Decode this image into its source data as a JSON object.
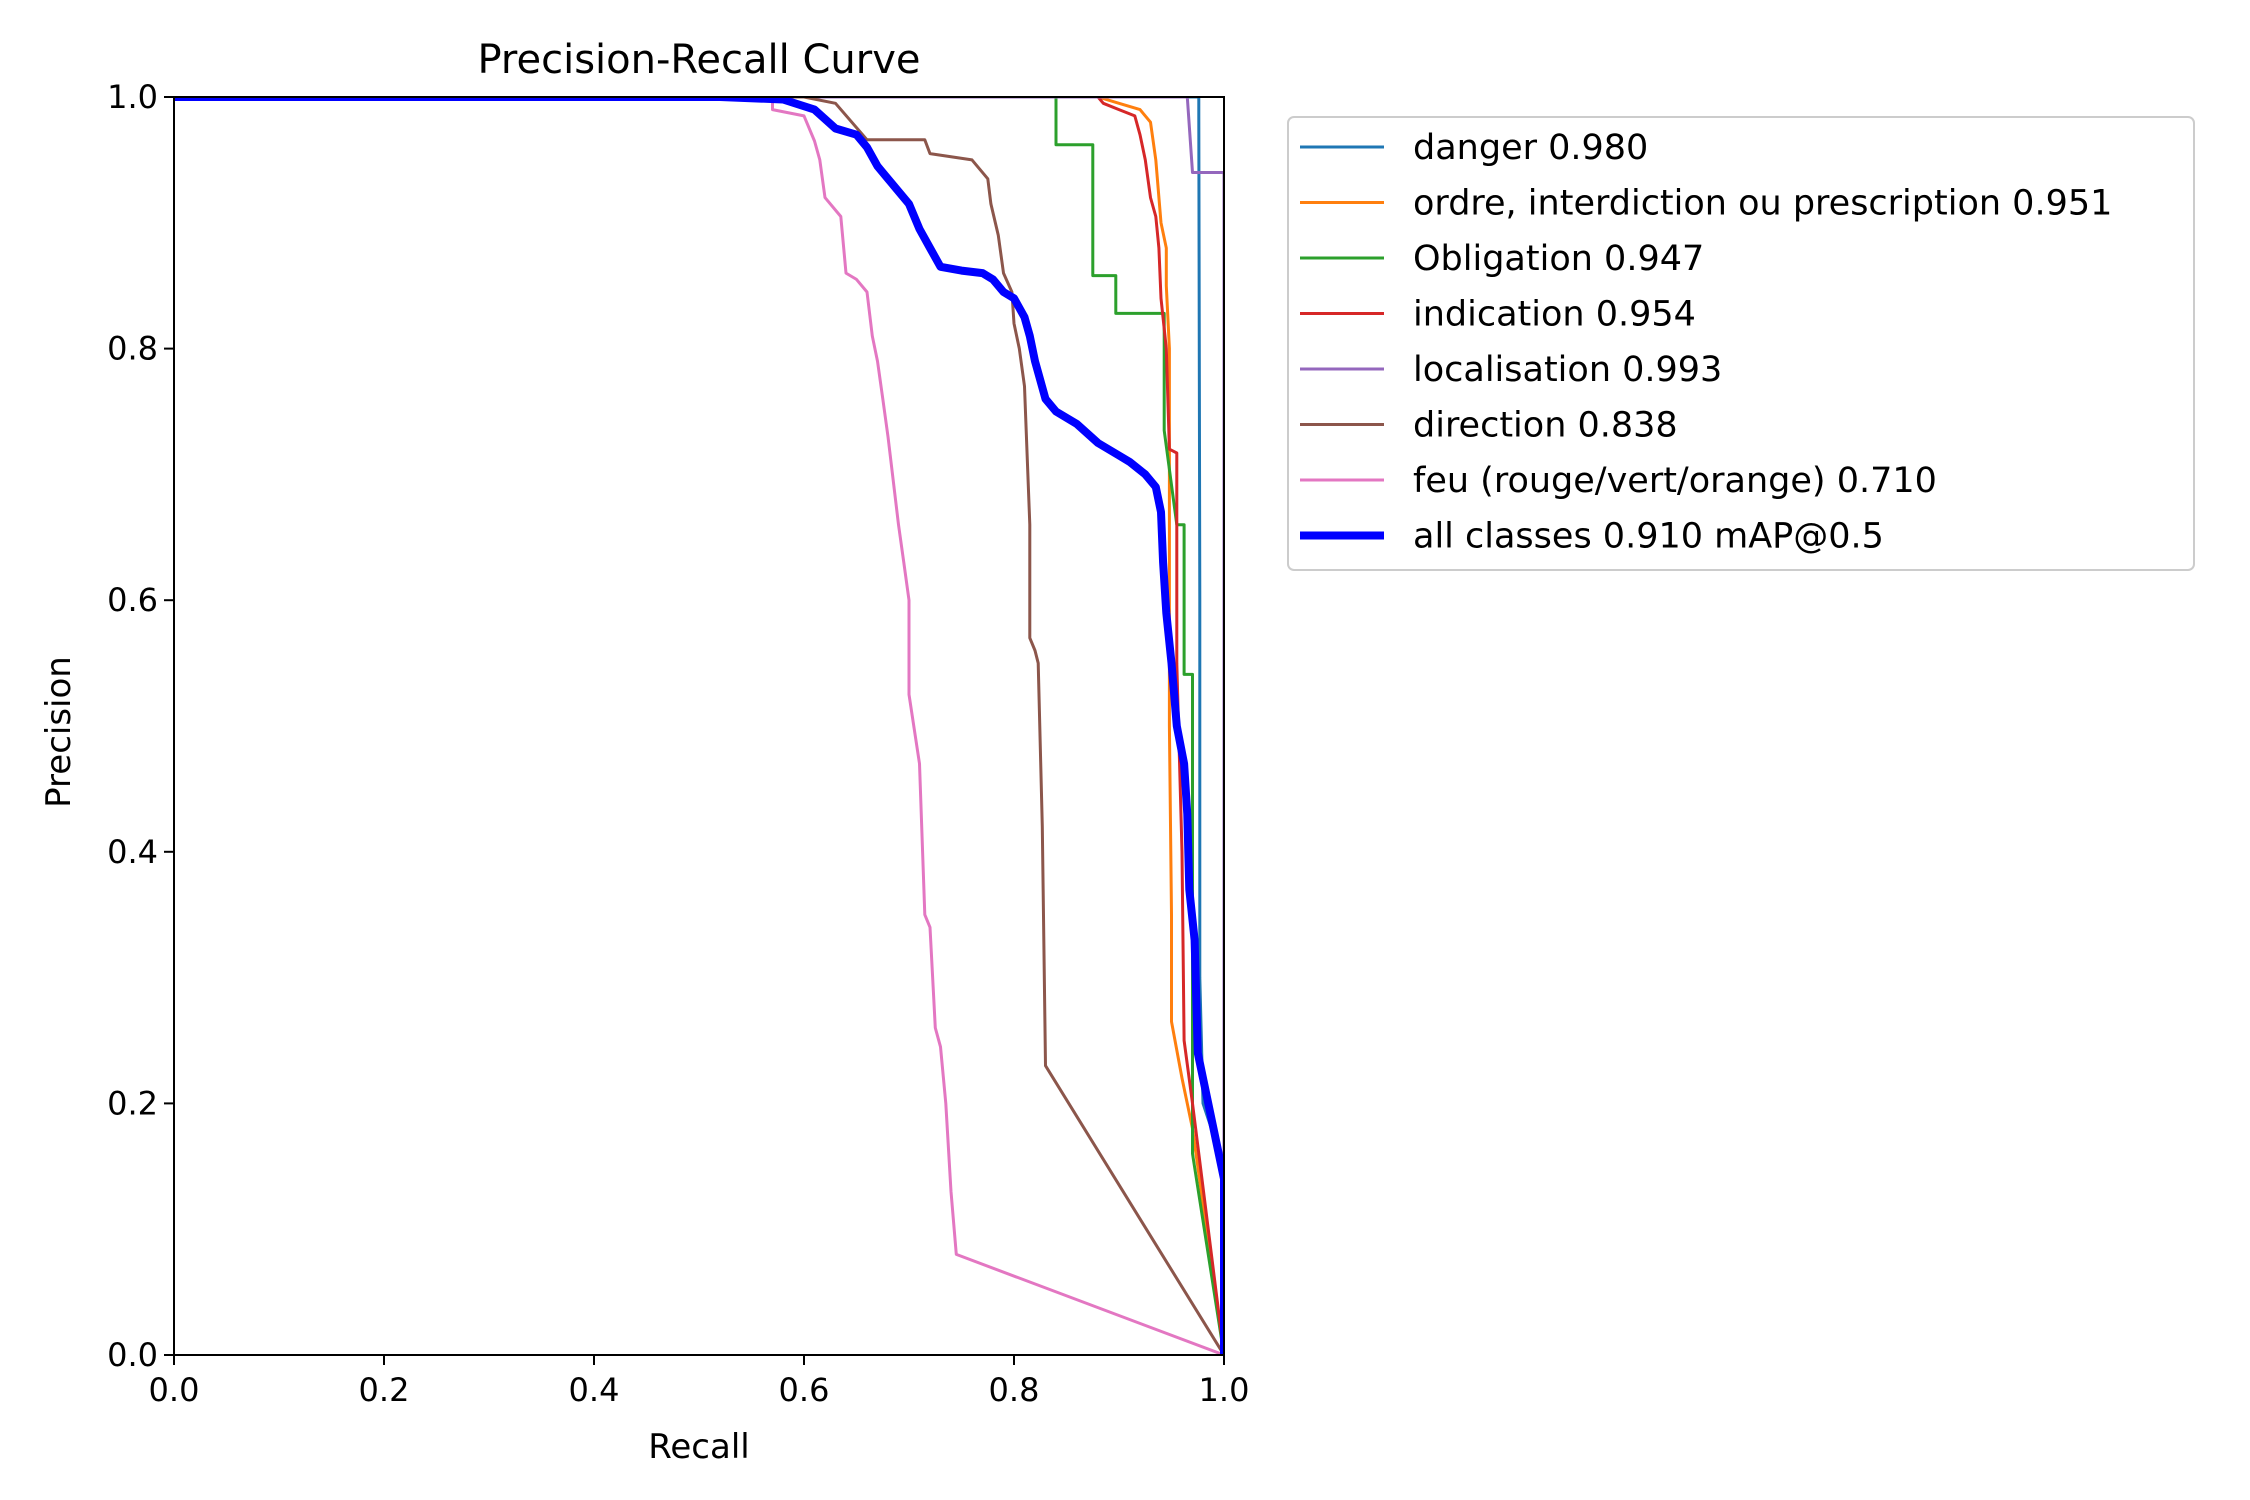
{
  "chart_data": {
    "type": "line",
    "title": "Precision-Recall Curve",
    "xlabel": "Recall",
    "ylabel": "Precision",
    "xlim": [
      0,
      1
    ],
    "ylim": [
      0,
      1
    ],
    "xticks": [
      "0.0",
      "0.2",
      "0.4",
      "0.6",
      "0.8",
      "1.0"
    ],
    "yticks": [
      "0.0",
      "0.2",
      "0.4",
      "0.6",
      "0.8",
      "1.0"
    ],
    "grid": false,
    "legend_position": "outside-right-top",
    "series": [
      {
        "name": "danger 0.980",
        "color": "#1f77b4",
        "width": 3,
        "points": [
          [
            0,
            1
          ],
          [
            0.976,
            1
          ],
          [
            0.976,
            0.985
          ],
          [
            0.977,
            0.6
          ],
          [
            0.977,
            0.3
          ],
          [
            0.98,
            0.2
          ],
          [
            1.0,
            0.15
          ],
          [
            1.0,
            0
          ]
        ]
      },
      {
        "name": "ordre, interdiction ou prescription 0.951",
        "color": "#ff7f0e",
        "width": 3,
        "points": [
          [
            0,
            1
          ],
          [
            0.88,
            1
          ],
          [
            0.9,
            0.995
          ],
          [
            0.92,
            0.99
          ],
          [
            0.93,
            0.98
          ],
          [
            0.935,
            0.95
          ],
          [
            0.94,
            0.9
          ],
          [
            0.945,
            0.88
          ],
          [
            0.945,
            0.85
          ],
          [
            0.948,
            0.8
          ],
          [
            0.948,
            0.5
          ],
          [
            0.95,
            0.35
          ],
          [
            0.95,
            0.265
          ],
          [
            0.96,
            0.22
          ],
          [
            0.97,
            0.18
          ],
          [
            1.0,
            0
          ]
        ]
      },
      {
        "name": "Obligation 0.947",
        "color": "#2ca02c",
        "width": 3,
        "points": [
          [
            0,
            1
          ],
          [
            0.84,
            1
          ],
          [
            0.84,
            0.962
          ],
          [
            0.875,
            0.962
          ],
          [
            0.875,
            0.858
          ],
          [
            0.897,
            0.858
          ],
          [
            0.897,
            0.828
          ],
          [
            0.943,
            0.828
          ],
          [
            0.943,
            0.735
          ],
          [
            0.955,
            0.66
          ],
          [
            0.962,
            0.66
          ],
          [
            0.962,
            0.541
          ],
          [
            0.97,
            0.541
          ],
          [
            0.97,
            0.5
          ],
          [
            0.97,
            0.16
          ],
          [
            1.0,
            0
          ]
        ]
      },
      {
        "name": "indication 0.954",
        "color": "#d62728",
        "width": 3,
        "points": [
          [
            0,
            1
          ],
          [
            0.88,
            1
          ],
          [
            0.885,
            0.995
          ],
          [
            0.9,
            0.99
          ],
          [
            0.915,
            0.985
          ],
          [
            0.92,
            0.97
          ],
          [
            0.925,
            0.95
          ],
          [
            0.93,
            0.92
          ],
          [
            0.935,
            0.905
          ],
          [
            0.938,
            0.88
          ],
          [
            0.94,
            0.84
          ],
          [
            0.945,
            0.8
          ],
          [
            0.948,
            0.72
          ],
          [
            0.955,
            0.717
          ],
          [
            0.955,
            0.55
          ],
          [
            0.96,
            0.4
          ],
          [
            0.962,
            0.25
          ],
          [
            0.97,
            0.2
          ],
          [
            1.0,
            0
          ]
        ]
      },
      {
        "name": "localisation 0.993",
        "color": "#9467bd",
        "width": 3,
        "points": [
          [
            0,
            1
          ],
          [
            0.965,
            1
          ],
          [
            0.97,
            0.94
          ],
          [
            1.0,
            0.94
          ],
          [
            1.0,
            0
          ]
        ]
      },
      {
        "name": "direction 0.838",
        "color": "#8c564b",
        "width": 3,
        "points": [
          [
            0,
            1
          ],
          [
            0.6,
            1
          ],
          [
            0.63,
            0.995
          ],
          [
            0.66,
            0.966
          ],
          [
            0.715,
            0.966
          ],
          [
            0.72,
            0.955
          ],
          [
            0.76,
            0.95
          ],
          [
            0.775,
            0.935
          ],
          [
            0.778,
            0.915
          ],
          [
            0.785,
            0.89
          ],
          [
            0.79,
            0.86
          ],
          [
            0.798,
            0.845
          ],
          [
            0.8,
            0.82
          ],
          [
            0.805,
            0.8
          ],
          [
            0.81,
            0.77
          ],
          [
            0.815,
            0.66
          ],
          [
            0.815,
            0.57
          ],
          [
            0.82,
            0.56
          ],
          [
            0.823,
            0.55
          ],
          [
            0.827,
            0.42
          ],
          [
            0.83,
            0.23
          ],
          [
            1.0,
            0
          ]
        ]
      },
      {
        "name": "feu (rouge/vert/orange) 0.710",
        "color": "#e377c2",
        "width": 3,
        "points": [
          [
            0,
            1
          ],
          [
            0.57,
            1
          ],
          [
            0.57,
            0.99
          ],
          [
            0.6,
            0.985
          ],
          [
            0.61,
            0.965
          ],
          [
            0.615,
            0.95
          ],
          [
            0.62,
            0.92
          ],
          [
            0.635,
            0.905
          ],
          [
            0.64,
            0.86
          ],
          [
            0.65,
            0.855
          ],
          [
            0.66,
            0.845
          ],
          [
            0.665,
            0.81
          ],
          [
            0.67,
            0.79
          ],
          [
            0.675,
            0.76
          ],
          [
            0.68,
            0.73
          ],
          [
            0.69,
            0.66
          ],
          [
            0.695,
            0.63
          ],
          [
            0.7,
            0.6
          ],
          [
            0.7,
            0.525
          ],
          [
            0.71,
            0.47
          ],
          [
            0.715,
            0.35
          ],
          [
            0.72,
            0.34
          ],
          [
            0.725,
            0.26
          ],
          [
            0.73,
            0.245
          ],
          [
            0.735,
            0.2
          ],
          [
            0.74,
            0.13
          ],
          [
            0.745,
            0.08
          ],
          [
            1.0,
            0
          ]
        ]
      },
      {
        "name": "all classes 0.910 mAP@0.5",
        "color": "#0000ff",
        "width": 8,
        "points": [
          [
            0,
            1
          ],
          [
            0.52,
            1
          ],
          [
            0.58,
            0.998
          ],
          [
            0.61,
            0.99
          ],
          [
            0.63,
            0.975
          ],
          [
            0.65,
            0.97
          ],
          [
            0.66,
            0.96
          ],
          [
            0.67,
            0.945
          ],
          [
            0.68,
            0.935
          ],
          [
            0.7,
            0.915
          ],
          [
            0.71,
            0.895
          ],
          [
            0.72,
            0.88
          ],
          [
            0.73,
            0.865
          ],
          [
            0.75,
            0.862
          ],
          [
            0.77,
            0.86
          ],
          [
            0.78,
            0.855
          ],
          [
            0.79,
            0.845
          ],
          [
            0.8,
            0.84
          ],
          [
            0.81,
            0.825
          ],
          [
            0.815,
            0.81
          ],
          [
            0.82,
            0.79
          ],
          [
            0.83,
            0.76
          ],
          [
            0.84,
            0.75
          ],
          [
            0.86,
            0.74
          ],
          [
            0.88,
            0.725
          ],
          [
            0.9,
            0.715
          ],
          [
            0.91,
            0.71
          ],
          [
            0.925,
            0.7
          ],
          [
            0.935,
            0.69
          ],
          [
            0.94,
            0.67
          ],
          [
            0.942,
            0.63
          ],
          [
            0.945,
            0.59
          ],
          [
            0.95,
            0.55
          ],
          [
            0.955,
            0.5
          ],
          [
            0.962,
            0.47
          ],
          [
            0.965,
            0.43
          ],
          [
            0.967,
            0.37
          ],
          [
            0.972,
            0.33
          ],
          [
            0.975,
            0.24
          ],
          [
            0.98,
            0.22
          ],
          [
            0.99,
            0.18
          ],
          [
            1.0,
            0.14
          ],
          [
            1.0,
            0
          ]
        ]
      }
    ]
  }
}
